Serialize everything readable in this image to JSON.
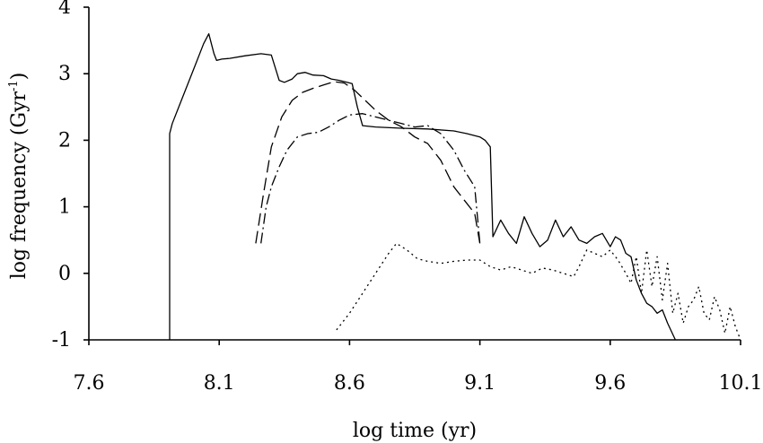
{
  "chart_data": {
    "type": "line",
    "title": "",
    "xlabel": "log time (yr)",
    "ylabel_main": "log frequency (Gyr",
    "ylabel_sup": "-1",
    "ylabel_close": ")",
    "xlim": [
      7.6,
      10.1
    ],
    "ylim": [
      -1,
      4
    ],
    "xticks": [
      7.6,
      8.1,
      8.6,
      9.1,
      9.6,
      10.1
    ],
    "xtick_labels": [
      "7.6",
      "8.1",
      "8.6",
      "9.1",
      "9.6",
      "10.1"
    ],
    "yticks": [
      -1,
      0,
      1,
      2,
      3,
      4
    ],
    "ytick_labels": [
      "-1",
      "0",
      "1",
      "2",
      "3",
      "4"
    ],
    "grid": false,
    "series": [
      {
        "style": "solid",
        "x": [
          7.91,
          7.91,
          7.92,
          7.95,
          7.98,
          8.01,
          8.04,
          8.06,
          8.08,
          8.09,
          8.11,
          8.14,
          8.2,
          8.26,
          8.3,
          8.33,
          8.35,
          8.38,
          8.4,
          8.43,
          8.46,
          8.5,
          8.53,
          8.56,
          8.59,
          8.61,
          8.63,
          8.65,
          8.7,
          8.8,
          8.9,
          9.0,
          9.05,
          9.1,
          9.12,
          9.14,
          9.15,
          9.18,
          9.21,
          9.24,
          9.27,
          9.3,
          9.33,
          9.36,
          9.39,
          9.42,
          9.45,
          9.48,
          9.51,
          9.54,
          9.57,
          9.6,
          9.62,
          9.64,
          9.66,
          9.68,
          9.7,
          9.72,
          9.74,
          9.76,
          9.78,
          9.8,
          9.82,
          9.85
        ],
        "y": [
          -1.0,
          2.1,
          2.25,
          2.55,
          2.85,
          3.15,
          3.45,
          3.6,
          3.3,
          3.2,
          3.22,
          3.23,
          3.27,
          3.3,
          3.28,
          2.9,
          2.87,
          2.92,
          3.0,
          3.02,
          2.98,
          2.97,
          2.92,
          2.9,
          2.87,
          2.85,
          2.5,
          2.22,
          2.2,
          2.18,
          2.17,
          2.14,
          2.1,
          2.05,
          2.0,
          1.9,
          0.55,
          0.8,
          0.6,
          0.45,
          0.85,
          0.6,
          0.4,
          0.5,
          0.8,
          0.55,
          0.7,
          0.5,
          0.45,
          0.55,
          0.6,
          0.4,
          0.55,
          0.5,
          0.3,
          0.25,
          -0.1,
          -0.3,
          -0.45,
          -0.5,
          -0.6,
          -0.55,
          -0.75,
          -1.0
        ]
      },
      {
        "style": "dashed",
        "x": [
          8.24,
          8.27,
          8.3,
          8.34,
          8.38,
          8.42,
          8.46,
          8.5,
          8.54,
          8.58,
          8.62,
          8.66,
          8.7,
          8.75,
          8.8,
          8.85,
          8.9,
          8.95,
          9.0,
          9.04,
          9.08,
          9.1
        ],
        "y": [
          0.45,
          1.2,
          1.9,
          2.35,
          2.6,
          2.72,
          2.78,
          2.83,
          2.88,
          2.86,
          2.75,
          2.6,
          2.45,
          2.3,
          2.2,
          2.05,
          1.95,
          1.7,
          1.3,
          1.1,
          0.9,
          0.45
        ]
      },
      {
        "style": "dash-dot",
        "x": [
          8.26,
          8.28,
          8.3,
          8.33,
          8.36,
          8.4,
          8.44,
          8.48,
          8.52,
          8.56,
          8.6,
          8.65,
          8.7,
          8.75,
          8.8,
          8.85,
          8.9,
          8.95,
          9.0,
          9.04,
          9.08,
          9.1
        ],
        "y": [
          0.45,
          1.0,
          1.3,
          1.6,
          1.85,
          2.05,
          2.1,
          2.12,
          2.2,
          2.3,
          2.38,
          2.4,
          2.35,
          2.3,
          2.25,
          2.2,
          2.22,
          2.1,
          1.85,
          1.55,
          1.3,
          0.45
        ]
      },
      {
        "style": "dotted",
        "x": [
          8.55,
          8.6,
          8.65,
          8.7,
          8.75,
          8.78,
          8.82,
          8.86,
          8.9,
          8.95,
          9.0,
          9.05,
          9.1,
          9.14,
          9.18,
          9.22,
          9.26,
          9.3,
          9.34,
          9.38,
          9.42,
          9.46,
          9.48,
          9.51,
          9.54,
          9.57,
          9.6,
          9.63,
          9.66,
          9.68,
          9.7,
          9.72,
          9.74,
          9.76,
          9.78,
          9.8,
          9.82,
          9.84,
          9.86,
          9.88,
          9.9,
          9.92,
          9.94,
          9.96,
          9.98,
          10.0,
          10.02,
          10.04,
          10.06,
          10.08,
          10.1
        ],
        "y": [
          -0.85,
          -0.6,
          -0.3,
          0.0,
          0.3,
          0.45,
          0.35,
          0.22,
          0.18,
          0.15,
          0.18,
          0.2,
          0.2,
          0.1,
          0.05,
          0.1,
          0.05,
          0.0,
          0.08,
          0.05,
          0.0,
          -0.05,
          0.1,
          0.35,
          0.3,
          0.25,
          0.35,
          0.2,
          0.0,
          -0.15,
          0.25,
          -0.3,
          0.35,
          -0.2,
          0.25,
          -0.4,
          0.15,
          -0.6,
          -0.3,
          -0.75,
          -0.5,
          -0.4,
          -0.2,
          -0.6,
          -0.7,
          -0.35,
          -0.55,
          -0.9,
          -0.5,
          -0.8,
          -1.0
        ]
      }
    ]
  }
}
